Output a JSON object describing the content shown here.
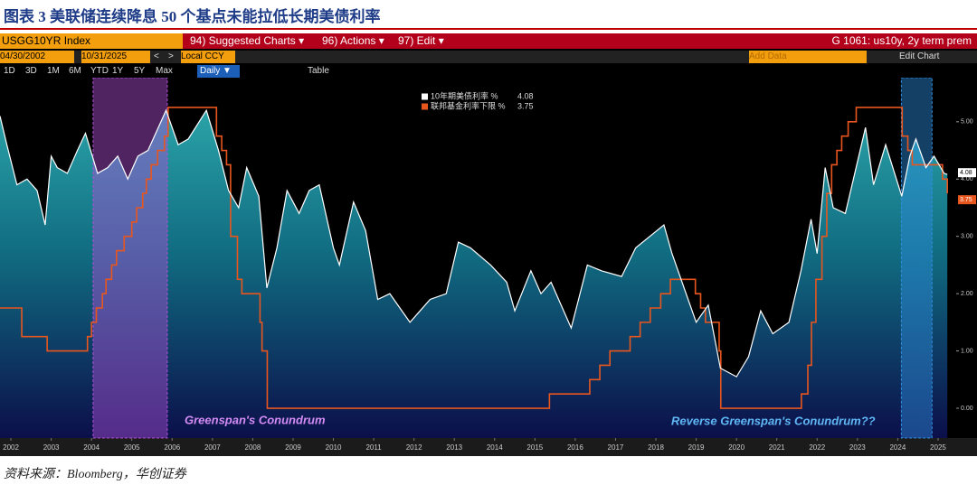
{
  "header": {
    "title": "图表 3 美联储连续降息 50 个基点未能拉低长期美债利率"
  },
  "toolbar": {
    "ticker": "USGG10YR Index",
    "menus": [
      "94) Suggested Charts ▾",
      "96) Actions ▾",
      "97) Edit ▾"
    ],
    "chart_name": "G 1061: us10y, 2y term prem",
    "start_date": "04/30/2002",
    "end_date": "10/31/2025",
    "nav": [
      "<",
      ">"
    ],
    "currency": "Local CCY",
    "add_data": "Add Data",
    "edit_chart": "Edit Chart",
    "ranges": [
      "1D",
      "3D",
      "1M",
      "6M",
      "YTD",
      "1Y",
      "5Y",
      "Max"
    ],
    "frequency": "Daily ▼",
    "table": "Table"
  },
  "chart_data": {
    "type": "line",
    "xlim": [
      2002.33,
      2026.05
    ],
    "ylim": [
      -0.52,
      5.77
    ],
    "xticks": [
      {
        "value": 2002.6,
        "label": "2002"
      },
      {
        "value": 2003.6,
        "label": "2003"
      },
      {
        "value": 2004.6,
        "label": "2004"
      },
      {
        "value": 2005.6,
        "label": "2005"
      },
      {
        "value": 2006.6,
        "label": "2006"
      },
      {
        "value": 2007.6,
        "label": "2007"
      },
      {
        "value": 2008.6,
        "label": "2008"
      },
      {
        "value": 2009.6,
        "label": "2009"
      },
      {
        "value": 2010.6,
        "label": "2010"
      },
      {
        "value": 2011.6,
        "label": "2011"
      },
      {
        "value": 2012.6,
        "label": "2012"
      },
      {
        "value": 2013.6,
        "label": "2013"
      },
      {
        "value": 2014.6,
        "label": "2014"
      },
      {
        "value": 2015.6,
        "label": "2015"
      },
      {
        "value": 2016.6,
        "label": "2016"
      },
      {
        "value": 2017.6,
        "label": "2017"
      },
      {
        "value": 2018.6,
        "label": "2018"
      },
      {
        "value": 2019.6,
        "label": "2019"
      },
      {
        "value": 2020.6,
        "label": "2020"
      },
      {
        "value": 2021.6,
        "label": "2021"
      },
      {
        "value": 2022.6,
        "label": "2022"
      },
      {
        "value": 2023.6,
        "label": "2023"
      },
      {
        "value": 2024.6,
        "label": "2024"
      },
      {
        "value": 2025.6,
        "label": "2025"
      }
    ],
    "yticks": [
      {
        "value": 0,
        "label": "0.00"
      },
      {
        "value": 1,
        "label": "1.00"
      },
      {
        "value": 2,
        "label": "2.00"
      },
      {
        "value": 3,
        "label": "3.00"
      },
      {
        "value": 4,
        "label": "4.00"
      },
      {
        "value": 5,
        "label": "5.00"
      }
    ],
    "grid": false,
    "series": [
      {
        "name": "10年期美债利率 %",
        "color": "#ffffff",
        "area": true,
        "x": [
          2002.33,
          2002.5,
          2002.75,
          2003.0,
          2003.25,
          2003.45,
          2003.6,
          2003.75,
          2004.0,
          2004.25,
          2004.45,
          2004.75,
          2005.0,
          2005.25,
          2005.5,
          2005.75,
          2006.0,
          2006.45,
          2006.75,
          2007.0,
          2007.45,
          2007.75,
          2008.0,
          2008.25,
          2008.45,
          2008.75,
          2008.95,
          2009.2,
          2009.45,
          2009.75,
          2010.0,
          2010.25,
          2010.6,
          2010.75,
          2011.1,
          2011.4,
          2011.7,
          2012.0,
          2012.5,
          2012.75,
          2013.0,
          2013.4,
          2013.7,
          2014.0,
          2014.5,
          2014.9,
          2015.1,
          2015.5,
          2015.75,
          2016.0,
          2016.5,
          2016.9,
          2017.25,
          2017.75,
          2018.1,
          2018.8,
          2019.0,
          2019.6,
          2019.9,
          2020.2,
          2020.6,
          2020.9,
          2021.2,
          2021.5,
          2021.9,
          2022.2,
          2022.45,
          2022.6,
          2022.8,
          2023.0,
          2023.3,
          2023.8,
          2024.0,
          2024.3,
          2024.7,
          2024.9,
          2025.05,
          2025.3,
          2025.5,
          2025.75,
          2025.83
        ],
        "values": [
          5.1,
          4.6,
          3.9,
          4.0,
          3.8,
          3.2,
          4.4,
          4.2,
          4.1,
          4.5,
          4.8,
          4.1,
          4.2,
          4.4,
          4.0,
          4.4,
          4.5,
          5.2,
          4.6,
          4.7,
          5.2,
          4.5,
          3.8,
          3.5,
          4.2,
          3.7,
          2.1,
          2.8,
          3.8,
          3.4,
          3.8,
          3.9,
          2.8,
          2.5,
          3.6,
          3.1,
          1.9,
          2.0,
          1.5,
          1.7,
          1.9,
          2.0,
          2.9,
          2.8,
          2.5,
          2.2,
          1.7,
          2.4,
          2.0,
          2.2,
          1.4,
          2.5,
          2.4,
          2.3,
          2.8,
          3.2,
          2.7,
          1.5,
          1.8,
          0.7,
          0.55,
          0.9,
          1.7,
          1.3,
          1.5,
          2.4,
          3.3,
          2.7,
          4.2,
          3.5,
          3.4,
          4.9,
          3.9,
          4.6,
          3.7,
          4.4,
          4.7,
          4.2,
          4.4,
          4.1,
          4.08
        ]
      },
      {
        "name": "联邦基金利率下限 %",
        "color": "#e8561e",
        "step": true,
        "x": [
          2002.33,
          2002.87,
          2003.5,
          2004.5,
          2004.6,
          2004.72,
          2004.87,
          2004.96,
          2005.1,
          2005.22,
          2005.41,
          2005.6,
          2005.72,
          2005.87,
          2005.96,
          2006.08,
          2006.24,
          2006.41,
          2006.5,
          2007.7,
          2007.83,
          2007.95,
          2008.05,
          2008.22,
          2008.33,
          2008.78,
          2008.83,
          2008.96,
          2015.96,
          2016.96,
          2017.21,
          2017.46,
          2017.96,
          2018.21,
          2018.46,
          2018.72,
          2018.96,
          2019.58,
          2019.71,
          2019.83,
          2020.17,
          2020.21,
          2022.21,
          2022.37,
          2022.46,
          2022.57,
          2022.72,
          2022.84,
          2022.96,
          2023.09,
          2023.21,
          2023.37,
          2023.57,
          2024.71,
          2024.85,
          2024.96,
          2025.71,
          2025.83
        ],
        "values": [
          1.75,
          1.25,
          1.0,
          1.25,
          1.5,
          1.75,
          2.0,
          2.25,
          2.5,
          2.75,
          3.0,
          3.25,
          3.5,
          3.75,
          4.0,
          4.25,
          4.5,
          4.75,
          5.25,
          4.75,
          4.5,
          4.25,
          3.0,
          2.25,
          2.0,
          1.5,
          1.0,
          0.0,
          0.25,
          0.5,
          0.75,
          1.0,
          1.25,
          1.5,
          1.75,
          2.0,
          2.25,
          2.0,
          1.75,
          1.5,
          1.0,
          0.0,
          0.25,
          0.75,
          1.5,
          2.25,
          3.0,
          3.75,
          4.25,
          4.5,
          4.75,
          5.0,
          5.25,
          4.75,
          4.5,
          4.25,
          4.0,
          3.75
        ]
      }
    ],
    "shaded": [
      {
        "x": [
          2004.64,
          2006.48
        ],
        "label": "Greenspan's Conundrum",
        "color": "#b04fd6",
        "label_color": "#d58cf5"
      },
      {
        "x": [
          2024.69,
          2025.45
        ],
        "label": "Reverse Greenspan's Conundrum??",
        "color": "#2f8fe0",
        "label_color": "#5fb8f5"
      }
    ]
  },
  "source": "资料来源：Bloomberg，华创证券"
}
